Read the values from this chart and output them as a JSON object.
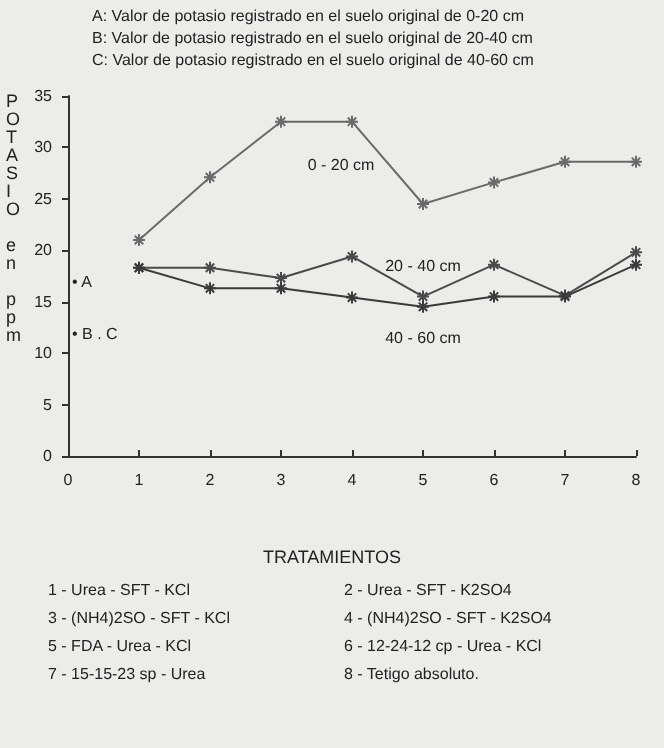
{
  "chart_data": {
    "type": "line",
    "ylabel": "POTASIO en ppm",
    "x": [
      1,
      2,
      3,
      4,
      5,
      6,
      7,
      8
    ],
    "series": [
      {
        "name": "0 - 20 cm",
        "color": "#6a6a6a",
        "values": [
          21,
          27.1,
          32.5,
          32.5,
          24.5,
          26.6,
          28.6,
          28.6
        ]
      },
      {
        "name": "20 - 40 cm",
        "color": "#4a4a4a",
        "values": [
          18.3,
          18.3,
          17.3,
          19.4,
          15.5,
          18.6,
          15.6,
          19.8
        ]
      },
      {
        "name": "40 - 60 cm",
        "color": "#3a3a3a",
        "values": [
          18.3,
          16.3,
          16.3,
          15.4,
          14.5,
          15.5,
          15.5,
          18.6
        ]
      }
    ],
    "xlim": [
      0,
      8
    ],
    "xticks": [
      0,
      1,
      2,
      3,
      4,
      5,
      6,
      7,
      8
    ],
    "ylim": [
      0,
      35
    ],
    "yticks": [
      0,
      5,
      10,
      15,
      20,
      25,
      30,
      35
    ],
    "grid": false,
    "legend": false,
    "marker": "cross",
    "line_style": "solid",
    "annotations": [
      "A: Valor de potasio registrado en el suelo original de 0-20 cm",
      "B: Valor de potasio registrado en el suelo original de 20-40 cm",
      "C: Valor de potasio registrado en el suelo original de 40-60 cm",
      "• A",
      "• B . C",
      "TRATAMIENTOS",
      "1 - Urea - SFT - KCl",
      "2 - Urea - SFT - K2SO4",
      "3 - (NH4)2SO - SFT - KCl",
      "4 - (NH4)2SO - SFT - K2SO4",
      "5 - FDA - Urea - KCl",
      "6 - 12-24-12 cp - Urea - KCl",
      "7 - 15-15-23 sp - Urea",
      "8 - Tetigo absoluto."
    ]
  }
}
